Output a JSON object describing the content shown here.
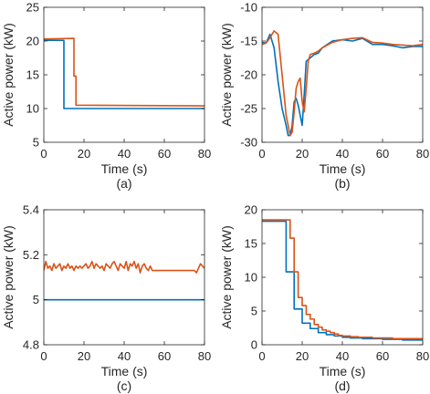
{
  "chart_data": [
    {
      "id": "a",
      "type": "line",
      "caption": "(a)",
      "xlabel": "Time (s)",
      "ylabel": "Active power (kW)",
      "xlim": [
        0,
        80
      ],
      "ylim": [
        5,
        25
      ],
      "xticks": [
        0,
        20,
        40,
        60,
        80
      ],
      "yticks": [
        5,
        10,
        15,
        20,
        25
      ],
      "grid": false,
      "series": [
        {
          "color": "#0072BD",
          "x": [
            0,
            10,
            10,
            80
          ],
          "y": [
            20.1,
            20.1,
            10,
            10
          ]
        },
        {
          "color": "#D95319",
          "x": [
            0,
            15,
            15,
            16,
            16,
            80
          ],
          "y": [
            20.3,
            20.4,
            14.8,
            14.8,
            10.5,
            10.4
          ]
        }
      ]
    },
    {
      "id": "b",
      "type": "line",
      "caption": "(b)",
      "xlabel": "Time (s)",
      "ylabel": "Active power (kW)",
      "xlim": [
        0,
        80
      ],
      "ylim": [
        -30,
        -10
      ],
      "xticks": [
        0,
        20,
        40,
        60,
        80
      ],
      "yticks": [
        -30,
        -25,
        -20,
        -15,
        -10
      ],
      "grid": false,
      "series": [
        {
          "color": "#0072BD",
          "x": [
            0,
            2,
            4,
            6,
            8,
            10,
            12,
            13,
            14,
            15,
            16,
            17,
            18,
            19,
            20,
            21,
            22,
            24,
            26,
            28,
            30,
            35,
            40,
            45,
            50,
            55,
            60,
            65,
            70,
            75,
            80
          ],
          "y": [
            -15.2,
            -15.3,
            -14,
            -16,
            -21,
            -25,
            -27.5,
            -29,
            -29,
            -27.5,
            -24,
            -23.5,
            -24.5,
            -26,
            -27.5,
            -23,
            -18,
            -17.5,
            -17,
            -16.8,
            -16,
            -15,
            -14.8,
            -15,
            -14.6,
            -15.5,
            -15.5,
            -15.7,
            -16,
            -15.8,
            -15.8
          ]
        },
        {
          "color": "#D95319",
          "x": [
            0,
            2,
            4,
            6,
            8,
            10,
            12,
            14,
            15,
            16,
            17,
            18,
            19,
            20,
            21,
            22,
            23,
            24,
            26,
            28,
            30,
            35,
            40,
            45,
            50,
            55,
            60,
            65,
            70,
            75,
            80
          ],
          "y": [
            -15.5,
            -15.3,
            -14.5,
            -13.5,
            -14,
            -20,
            -26,
            -29,
            -28.5,
            -25.5,
            -22,
            -21,
            -20.5,
            -24,
            -25.5,
            -22,
            -18,
            -17,
            -16.8,
            -16.5,
            -16,
            -15.2,
            -14.8,
            -14.6,
            -14.5,
            -15.2,
            -15.3,
            -15.5,
            -15.6,
            -15.7,
            -15.5
          ]
        }
      ]
    },
    {
      "id": "c",
      "type": "line",
      "caption": "(c)",
      "xlabel": "Time (s)",
      "ylabel": "Active power (kW)",
      "xlim": [
        0,
        80
      ],
      "ylim": [
        4.8,
        5.4
      ],
      "xticks": [
        0,
        20,
        40,
        60,
        80
      ],
      "yticks": [
        4.8,
        5,
        5.2,
        5.4
      ],
      "grid": false,
      "series": [
        {
          "color": "#0072BD",
          "x": [
            0,
            80
          ],
          "y": [
            5.0,
            5.0
          ]
        },
        {
          "color": "#D95319",
          "x": [
            0,
            1,
            2,
            3,
            4,
            5,
            6,
            7,
            8,
            9,
            10,
            11,
            12,
            13,
            14,
            15,
            16,
            17,
            18,
            19,
            20,
            21,
            22,
            23,
            24,
            25,
            26,
            27,
            28,
            29,
            30,
            31,
            32,
            33,
            34,
            35,
            36,
            37,
            38,
            39,
            40,
            41,
            42,
            43,
            44,
            45,
            46,
            47,
            48,
            49,
            50,
            51,
            52,
            53,
            54,
            55,
            60,
            65,
            70,
            75,
            76,
            77,
            78,
            79,
            80
          ],
          "y": [
            5.13,
            5.17,
            5.14,
            5.15,
            5.13,
            5.16,
            5.14,
            5.15,
            5.16,
            5.13,
            5.15,
            5.14,
            5.16,
            5.14,
            5.15,
            5.13,
            5.15,
            5.14,
            5.15,
            5.14,
            5.15,
            5.16,
            5.14,
            5.15,
            5.17,
            5.14,
            5.16,
            5.15,
            5.14,
            5.15,
            5.13,
            5.16,
            5.15,
            5.14,
            5.16,
            5.17,
            5.15,
            5.13,
            5.16,
            5.15,
            5.14,
            5.17,
            5.13,
            5.16,
            5.15,
            5.17,
            5.14,
            5.16,
            5.12,
            5.15,
            5.16,
            5.14,
            5.13,
            5.15,
            5.13,
            5.13,
            5.13,
            5.13,
            5.13,
            5.13,
            5.12,
            5.14,
            5.16,
            5.15,
            5.14
          ]
        }
      ]
    },
    {
      "id": "d",
      "type": "line",
      "caption": "(d)",
      "xlabel": "Time (s)",
      "ylabel": "Active power (kW)",
      "xlim": [
        0,
        80
      ],
      "ylim": [
        0,
        20
      ],
      "xticks": [
        0,
        20,
        40,
        60,
        80
      ],
      "yticks": [
        0,
        5,
        10,
        15,
        20
      ],
      "grid": false,
      "series": [
        {
          "color": "#0072BD",
          "x": [
            0,
            12,
            12,
            16,
            16,
            20,
            20,
            24,
            24,
            28,
            28,
            32,
            32,
            36,
            36,
            40,
            40,
            44,
            44,
            50,
            50,
            60,
            60,
            70,
            70,
            80
          ],
          "y": [
            18.3,
            18.3,
            10.8,
            10.8,
            5.3,
            5.3,
            3.2,
            3.2,
            2.4,
            2.4,
            1.8,
            1.8,
            1.5,
            1.5,
            1.3,
            1.3,
            1.1,
            1.1,
            1.0,
            1.0,
            0.9,
            0.9,
            0.8,
            0.8,
            0.7,
            0.7
          ]
        },
        {
          "color": "#D95319",
          "x": [
            0,
            14,
            14,
            16,
            16,
            18,
            18,
            20,
            20,
            22,
            22,
            24,
            24,
            26,
            26,
            28,
            28,
            30,
            30,
            32,
            32,
            34,
            34,
            36,
            36,
            38,
            38,
            40,
            40,
            44,
            44,
            48,
            48,
            55,
            55,
            65,
            65,
            80
          ],
          "y": [
            18.5,
            18.5,
            15.8,
            15.8,
            10.8,
            10.8,
            7.0,
            7.0,
            5.8,
            5.8,
            4.5,
            4.5,
            3.8,
            3.8,
            3.0,
            3.0,
            2.6,
            2.6,
            2.2,
            2.2,
            2.0,
            2.0,
            1.8,
            1.8,
            1.6,
            1.6,
            1.4,
            1.4,
            1.3,
            1.3,
            1.2,
            1.2,
            1.1,
            1.1,
            1.0,
            1.0,
            0.9,
            0.9
          ]
        }
      ]
    }
  ]
}
